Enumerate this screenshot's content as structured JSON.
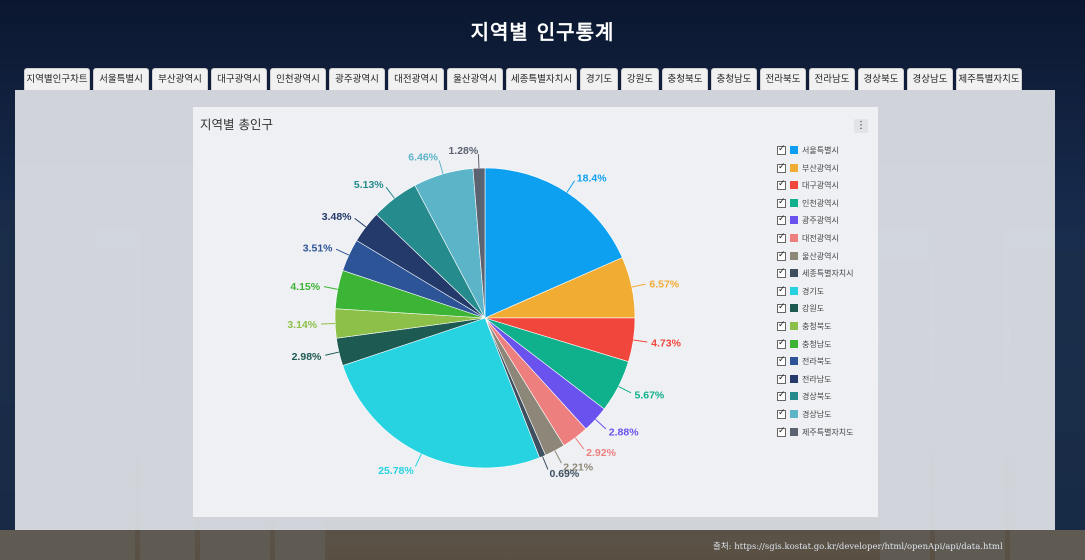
{
  "page": {
    "title": "지역별 인구통계",
    "source": "출처: https://sgis.kostat.go.kr/developer/html/openApi/api/data.html"
  },
  "tabs": [
    "지역별인구차트",
    "서울특별시",
    "부산광역시",
    "대구광역시",
    "인천광역시",
    "광주광역시",
    "대전광역시",
    "울산광역시",
    "세종특별자치시",
    "경기도",
    "강원도",
    "충청북도",
    "충청남도",
    "전라북도",
    "전라남도",
    "경상북도",
    "경상남도",
    "제주특별자치도"
  ],
  "chart_data": {
    "type": "pie",
    "title": "지역별 총인구",
    "legend_position": "right",
    "categories": [
      "서울특별시",
      "부산광역시",
      "대구광역시",
      "인천광역시",
      "광주광역시",
      "대전광역시",
      "울산광역시",
      "세종특별자치시",
      "경기도",
      "강원도",
      "충청북도",
      "충청남도",
      "전라북도",
      "전라남도",
      "경상북도",
      "경상남도",
      "제주특별자치도"
    ],
    "values": [
      18.4,
      6.57,
      4.73,
      5.67,
      2.88,
      2.92,
      2.21,
      0.69,
      25.78,
      2.98,
      3.14,
      4.15,
      3.51,
      3.48,
      5.13,
      6.46,
      1.28
    ],
    "labels": [
      "18.4%",
      "6.57%",
      "4.73%",
      "5.67%",
      "2.88%",
      "2.92%",
      "2.21%",
      "0.69%",
      "25.78%",
      "2.98%",
      "3.14%",
      "4.15%",
      "3.51%",
      "3.48%",
      "5.13%",
      "6.46%",
      "1.28%"
    ],
    "colors": [
      "#0ea0f0",
      "#f0ac33",
      "#f0463c",
      "#0fb18c",
      "#6a52ee",
      "#ee7f7f",
      "#8c8778",
      "#3e4f60",
      "#27d3e0",
      "#1c5a52",
      "#8cc048",
      "#3cb436",
      "#2c5496",
      "#243a6a",
      "#258b8c",
      "#5cb4c8",
      "#5b6270"
    ],
    "legend_labels": [
      "서울특별시",
      "부산광역시",
      "대구광역시",
      "인천광역시",
      "광주광역시",
      "대전광역시",
      "울산광역시",
      "세종특별자치시",
      "경기도",
      "강원도",
      "충청북도",
      "충청남도",
      "전라북도",
      "전라남도",
      "경상북도",
      "경상남도",
      "제주특별자치도"
    ]
  }
}
